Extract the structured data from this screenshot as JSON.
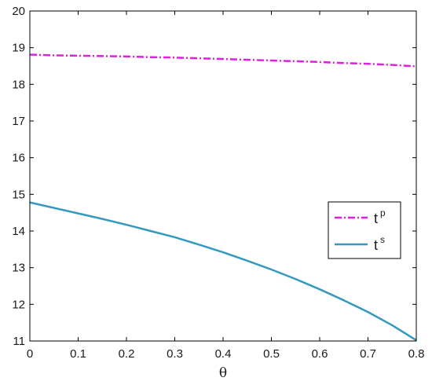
{
  "chart_data": {
    "type": "line",
    "title": "",
    "xlabel": "θ",
    "ylabel": "",
    "xlim": [
      0,
      0.8
    ],
    "ylim": [
      11,
      20
    ],
    "x_ticks": [
      "0",
      "0.1",
      "0.2",
      "0.3",
      "0.4",
      "0.5",
      "0.6",
      "0.7",
      "0.8"
    ],
    "y_ticks": [
      "11",
      "12",
      "13",
      "14",
      "15",
      "16",
      "17",
      "18",
      "19",
      "20"
    ],
    "grid": false,
    "legend_position": "right",
    "x": [
      0,
      0.05,
      0.1,
      0.15,
      0.2,
      0.25,
      0.3,
      0.35,
      0.4,
      0.45,
      0.5,
      0.55,
      0.6,
      0.65,
      0.7,
      0.75,
      0.8
    ],
    "series": [
      {
        "name": "t",
        "name_sup": "p",
        "color": "#e01ee0",
        "style": "dash-dot",
        "values": [
          18.81,
          18.79,
          18.78,
          18.77,
          18.76,
          18.74,
          18.73,
          18.71,
          18.69,
          18.67,
          18.65,
          18.63,
          18.61,
          18.58,
          18.56,
          18.53,
          18.49
        ]
      },
      {
        "name": "t",
        "name_sup": "s",
        "color": "#3399bf",
        "style": "solid",
        "values": [
          14.78,
          14.63,
          14.48,
          14.33,
          14.17,
          14.0,
          13.83,
          13.63,
          13.42,
          13.19,
          12.95,
          12.69,
          12.41,
          12.11,
          11.79,
          11.43,
          11.02
        ]
      }
    ]
  }
}
